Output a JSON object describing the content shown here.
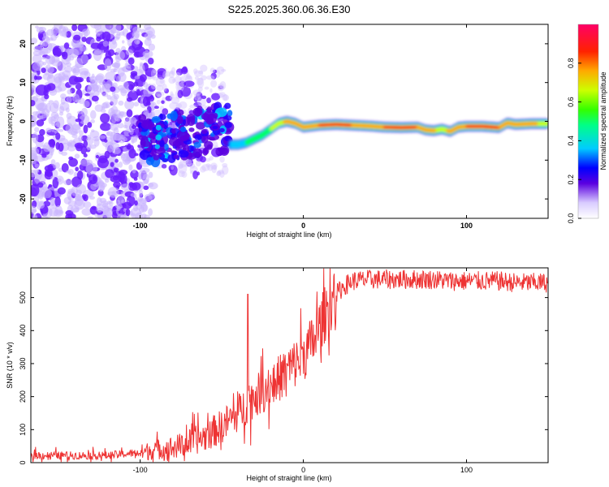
{
  "title": "S225.2025.360.06.36.E30",
  "chart_data": [
    {
      "type": "heatmap",
      "name": "spectrogram",
      "xlabel": "Height of straight line (km)",
      "ylabel": "Frequency (Hz)",
      "xlim": [
        -167,
        150
      ],
      "ylim": [
        -25,
        25
      ],
      "xticks": [
        -100,
        0,
        100
      ],
      "xtick_labels": [
        "-100",
        "0",
        "100"
      ],
      "yticks": [
        -20,
        -10,
        0,
        10,
        20
      ],
      "ytick_labels": [
        "-20",
        "-10",
        "0",
        "10",
        "20"
      ],
      "colorbar": {
        "label": "Normalized spectral amplitude",
        "range": [
          0.0,
          1.0
        ],
        "ticks": [
          0.0,
          0.2,
          0.4,
          0.6,
          0.8
        ],
        "tick_labels": [
          "0.0",
          "0.2",
          "0.4",
          "0.6",
          "0.8"
        ],
        "colors": [
          "#ffffff",
          "#b7a8ff",
          "#5a00e0",
          "#0000ff",
          "#00ccff",
          "#00ff66",
          "#ccff00",
          "#ffaa00",
          "#ff0000",
          "#ff0066"
        ]
      },
      "ridge": {
        "x": [
          -45,
          -40,
          -35,
          -30,
          -25,
          -20,
          -15,
          -10,
          -5,
          0,
          10,
          20,
          30,
          40,
          50,
          60,
          70,
          75,
          80,
          85,
          90,
          95,
          100,
          110,
          120,
          125,
          130,
          140,
          150
        ],
        "freq": [
          -6,
          -6,
          -5.5,
          -4.5,
          -3.5,
          -2,
          -0.5,
          0,
          -0.5,
          -1.5,
          -1,
          -0.8,
          -1,
          -1.2,
          -1.5,
          -1.6,
          -1.5,
          -2.2,
          -2.4,
          -2.0,
          -2.6,
          -1.5,
          -1.3,
          -1.3,
          -1.6,
          -0.4,
          -0.8,
          -0.6,
          -0.6
        ],
        "amplitude": [
          0.35,
          0.45,
          0.5,
          0.6,
          0.65,
          0.7,
          0.75,
          0.8,
          0.8,
          0.85,
          0.9,
          0.95,
          0.9,
          0.85,
          0.9,
          0.95,
          0.9,
          0.85,
          0.8,
          0.75,
          0.8,
          0.85,
          0.9,
          0.95,
          0.9,
          0.8,
          0.85,
          0.8,
          0.75
        ]
      }
    },
    {
      "type": "line",
      "name": "snr",
      "xlabel": "Height of straight line (km)",
      "ylabel": "SNR (10 * v/v)",
      "xlim": [
        -167,
        150
      ],
      "ylim": [
        0,
        590
      ],
      "xticks": [
        -100,
        0,
        100
      ],
      "xtick_labels": [
        "-100",
        "0",
        "100"
      ],
      "yticks": [
        0,
        100,
        200,
        300,
        400,
        500
      ],
      "ytick_labels": [
        "0",
        "100",
        "200",
        "300",
        "400",
        "500"
      ],
      "color": "#ee3333",
      "series_anchors": {
        "x": [
          -167,
          -120,
          -100,
          -90,
          -80,
          -70,
          -60,
          -50,
          -45,
          -40,
          -36,
          -34,
          -30,
          -25,
          -20,
          -15,
          -10,
          -5,
          0,
          5,
          10,
          15,
          20,
          25,
          30,
          40,
          50,
          60,
          70,
          80,
          90,
          100,
          110,
          120,
          130,
          140,
          150
        ],
        "y": [
          22,
          22,
          30,
          40,
          45,
          60,
          80,
          110,
          130,
          150,
          170,
          180,
          200,
          215,
          235,
          255,
          280,
          300,
          325,
          360,
          410,
          470,
          510,
          535,
          550,
          555,
          555,
          555,
          555,
          555,
          550,
          550,
          550,
          550,
          545,
          545,
          545
        ]
      },
      "spike": {
        "x": -34,
        "y": 510
      }
    }
  ]
}
